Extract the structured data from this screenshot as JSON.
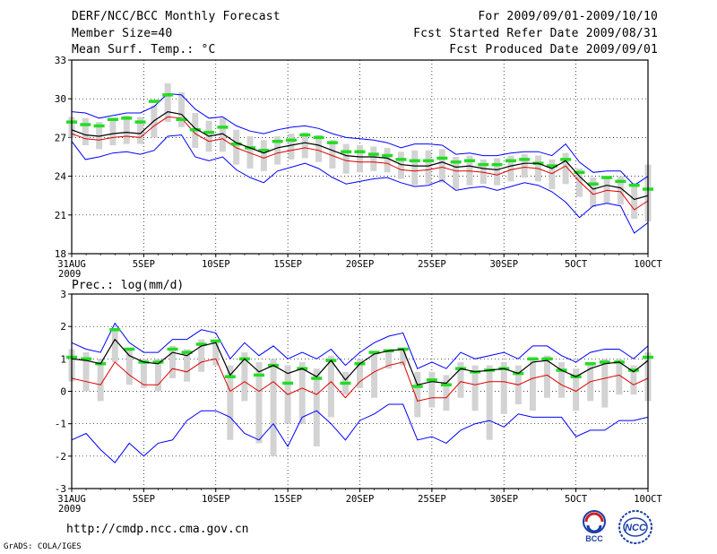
{
  "header": {
    "title": "DERF/NCC/BCC Monthly Forecast",
    "member": "Member Size=40",
    "variable": "Mean Surf. Temp.: °C",
    "period": "For 2009/09/01-2009/10/10",
    "started": "Fcst Started Refer Date 2009/08/31",
    "produced": "Fcst Produced Date 2009/09/01"
  },
  "footer": {
    "url": "http://cmdp.ncc.cma.gov.cn",
    "credit": "GrADS: COLA/IGES",
    "logo1_text": "BCC",
    "logo2_text": "NCC"
  },
  "colors": {
    "spread": "#d3d3d3",
    "blue": "#0000ff",
    "red": "#e00000",
    "green": "#22dd22",
    "mean": "#000000"
  },
  "chart_data": [
    {
      "type": "line",
      "title": "Mean Surf. Temp.: °C",
      "ylim": [
        18,
        33
      ],
      "yticks": [
        18,
        21,
        24,
        27,
        30,
        33
      ],
      "xtick_labels": [
        "31AUG",
        "5SEP",
        "10SEP",
        "15SEP",
        "20SEP",
        "25SEP",
        "30SEP",
        "5OCT",
        "10OCT"
      ],
      "xtick_days": [
        0,
        5,
        10,
        15,
        20,
        25,
        30,
        35,
        40
      ],
      "year_label": "2009",
      "grid": true,
      "series": [
        {
          "name": "ensemble mean",
          "values": [
            27.6,
            27.2,
            27.1,
            27.3,
            27.4,
            27.3,
            28.3,
            29.0,
            28.8,
            27.7,
            27.1,
            27.3,
            26.6,
            26.2,
            25.8,
            26.2,
            26.4,
            26.6,
            26.4,
            26.0,
            25.6,
            25.5,
            25.5,
            25.4,
            24.9,
            24.8,
            24.8,
            25.1,
            24.7,
            24.8,
            24.6,
            24.5,
            24.8,
            25.0,
            25.0,
            24.6,
            25.2,
            24.0,
            23.0,
            23.3,
            23.1,
            22.2,
            22.5
          ]
        },
        {
          "name": "upper bound",
          "values": [
            29.0,
            28.9,
            28.5,
            28.7,
            28.9,
            28.9,
            29.4,
            30.4,
            30.3,
            29.2,
            28.5,
            28.6,
            27.9,
            27.5,
            27.3,
            27.6,
            27.8,
            27.9,
            27.7,
            27.3,
            27.0,
            26.9,
            26.8,
            26.6,
            26.2,
            26.5,
            26.5,
            26.4,
            25.7,
            25.8,
            25.6,
            25.6,
            25.8,
            25.9,
            25.9,
            25.6,
            26.5,
            25.1,
            24.3,
            24.4,
            24.4,
            23.3,
            24.0
          ]
        },
        {
          "name": "lower bound",
          "values": [
            26.7,
            25.3,
            25.5,
            25.8,
            25.9,
            25.7,
            26.0,
            27.1,
            27.2,
            25.5,
            25.2,
            25.5,
            24.5,
            23.9,
            23.5,
            24.4,
            24.7,
            25.0,
            24.6,
            23.9,
            23.4,
            23.6,
            23.8,
            23.9,
            23.5,
            23.2,
            23.3,
            23.7,
            22.9,
            23.1,
            23.2,
            22.9,
            23.2,
            23.5,
            23.3,
            22.8,
            22.0,
            20.8,
            21.7,
            21.9,
            21.7,
            19.6,
            20.4
          ]
        },
        {
          "name": "green member",
          "values": [
            28.2,
            28.0,
            27.9,
            28.4,
            28.5,
            28.2,
            29.8,
            30.3,
            28.4,
            27.6,
            27.4,
            27.8,
            26.5,
            26.2,
            26.0,
            26.7,
            26.8,
            27.2,
            27.0,
            26.6,
            25.9,
            25.9,
            25.7,
            25.6,
            25.3,
            25.2,
            25.2,
            25.4,
            25.1,
            25.2,
            24.9,
            24.9,
            25.2,
            25.3,
            25.0,
            24.8,
            25.3,
            24.3,
            23.4,
            23.9,
            23.6,
            23.3,
            23.0
          ]
        },
        {
          "name": "red member",
          "values": [
            27.3,
            26.9,
            26.8,
            27.0,
            27.1,
            27.0,
            27.9,
            28.6,
            28.5,
            27.3,
            26.7,
            26.9,
            26.2,
            25.8,
            25.4,
            25.8,
            26.0,
            26.2,
            26.0,
            25.6,
            25.2,
            25.1,
            25.1,
            25.0,
            24.5,
            24.4,
            24.5,
            24.7,
            24.4,
            24.4,
            24.3,
            24.1,
            24.5,
            24.7,
            24.6,
            24.2,
            24.8,
            23.6,
            22.6,
            22.9,
            22.8,
            21.4,
            22.1
          ]
        },
        {
          "name": "spread bar high",
          "values": [
            28.6,
            28.5,
            28.2,
            28.5,
            28.7,
            28.6,
            29.5,
            31.2,
            30.5,
            28.9,
            28.3,
            28.5,
            27.6,
            27.1,
            26.8,
            27.1,
            27.3,
            27.4,
            27.2,
            26.8,
            26.5,
            26.4,
            26.3,
            26.2,
            25.9,
            26.0,
            26.0,
            26.1,
            25.5,
            25.6,
            25.3,
            25.4,
            25.6,
            25.7,
            25.6,
            25.3,
            25.8,
            24.6,
            23.9,
            24.0,
            24.0,
            23.5,
            24.9
          ]
        },
        {
          "name": "spread bar low",
          "values": [
            27.0,
            26.4,
            26.1,
            26.4,
            26.5,
            26.5,
            27.0,
            28.2,
            27.8,
            26.2,
            25.9,
            25.9,
            24.9,
            24.6,
            24.4,
            24.9,
            25.3,
            25.4,
            25.1,
            24.6,
            24.2,
            24.3,
            24.4,
            24.3,
            23.8,
            23.3,
            23.4,
            23.5,
            23.0,
            23.3,
            23.4,
            23.3,
            23.6,
            23.9,
            23.6,
            23.0,
            23.4,
            22.4,
            21.6,
            21.9,
            21.8,
            20.7,
            20.5
          ]
        }
      ]
    },
    {
      "type": "line",
      "title": "Prec.: log(mm/d)",
      "ylim": [
        -3,
        3
      ],
      "yticks": [
        -3,
        -2,
        -1,
        0,
        1,
        2,
        3
      ],
      "xtick_labels": [
        "31AUG",
        "5SEP",
        "10SEP",
        "15SEP",
        "20SEP",
        "25SEP",
        "30SEP",
        "5OCT",
        "10OCT"
      ],
      "xtick_days": [
        0,
        5,
        10,
        15,
        20,
        25,
        30,
        35,
        40
      ],
      "year_label": "2009",
      "grid": true,
      "series": [
        {
          "name": "ensemble mean",
          "values": [
            1.0,
            0.95,
            0.85,
            1.6,
            1.1,
            0.9,
            0.85,
            1.2,
            1.1,
            1.4,
            1.5,
            0.5,
            1.0,
            0.6,
            0.8,
            0.55,
            0.7,
            0.45,
            0.95,
            0.35,
            0.85,
            1.15,
            1.25,
            1.3,
            0.2,
            0.3,
            0.25,
            0.7,
            0.6,
            0.65,
            0.7,
            0.55,
            0.9,
            0.95,
            0.65,
            0.45,
            0.7,
            0.85,
            0.9,
            0.6,
            0.95
          ]
        },
        {
          "name": "upper bound",
          "values": [
            1.5,
            1.3,
            1.2,
            2.1,
            1.5,
            1.2,
            1.2,
            1.6,
            1.6,
            1.9,
            1.8,
            1.0,
            1.5,
            1.1,
            1.4,
            1.0,
            1.2,
            1.0,
            1.3,
            0.8,
            1.2,
            1.5,
            1.7,
            1.8,
            0.7,
            0.9,
            0.7,
            1.2,
            1.0,
            1.1,
            1.2,
            1.0,
            1.4,
            1.4,
            1.1,
            0.9,
            1.2,
            1.3,
            1.3,
            1.0,
            1.4
          ]
        },
        {
          "name": "lower bound",
          "values": [
            -1.5,
            -1.3,
            -1.8,
            -2.2,
            -1.6,
            -2.0,
            -1.6,
            -1.5,
            -0.9,
            -0.6,
            -0.6,
            -0.8,
            -1.3,
            -1.5,
            -1.0,
            -1.7,
            -0.8,
            -0.6,
            -1.0,
            -1.5,
            -0.9,
            -0.7,
            -0.4,
            -0.4,
            -1.5,
            -1.4,
            -1.6,
            -1.2,
            -1.0,
            -0.9,
            -1.1,
            -0.7,
            -0.8,
            -0.8,
            -0.8,
            -1.4,
            -1.2,
            -1.2,
            -0.9,
            -0.9,
            -0.8
          ]
        },
        {
          "name": "green member",
          "values": [
            1.05,
            1.0,
            0.85,
            1.9,
            1.3,
            0.9,
            0.9,
            1.3,
            1.2,
            1.45,
            1.55,
            0.45,
            1.0,
            0.5,
            0.8,
            0.25,
            0.7,
            0.4,
            0.95,
            0.25,
            0.85,
            1.2,
            1.25,
            1.3,
            0.15,
            0.35,
            0.2,
            0.7,
            0.6,
            0.65,
            0.7,
            0.55,
            1.0,
            1.0,
            0.65,
            0.45,
            0.85,
            0.9,
            0.9,
            0.65,
            1.05
          ]
        },
        {
          "name": "red member",
          "values": [
            0.4,
            0.3,
            0.2,
            0.9,
            0.5,
            0.2,
            0.2,
            0.7,
            0.6,
            0.9,
            1.0,
            0.0,
            0.3,
            0.0,
            0.3,
            -0.1,
            0.1,
            -0.1,
            0.3,
            -0.2,
            0.3,
            0.6,
            0.8,
            0.9,
            -0.3,
            -0.2,
            -0.2,
            0.3,
            0.2,
            0.3,
            0.3,
            0.2,
            0.4,
            0.5,
            0.2,
            0.0,
            0.3,
            0.4,
            0.5,
            0.2,
            0.4
          ]
        },
        {
          "name": "spread bar high",
          "values": [
            1.3,
            1.2,
            1.0,
            1.9,
            1.3,
            1.0,
            1.0,
            1.4,
            1.3,
            1.6,
            1.6,
            0.8,
            1.2,
            0.9,
            1.0,
            0.8,
            0.9,
            0.7,
            1.1,
            0.6,
            1.0,
            1.2,
            1.3,
            1.3,
            0.6,
            0.6,
            0.5,
            0.9,
            0.8,
            0.8,
            0.9,
            0.8,
            1.0,
            1.1,
            0.9,
            0.7,
            0.9,
            1.0,
            1.0,
            0.8,
            1.2
          ]
        },
        {
          "name": "spread bar low",
          "values": [
            0.3,
            0.0,
            -0.3,
            0.9,
            0.2,
            0.1,
            0.0,
            0.4,
            0.3,
            0.6,
            0.8,
            -1.5,
            -0.3,
            -1.6,
            -2.0,
            -1.0,
            -1.0,
            -1.7,
            -0.8,
            -0.1,
            0.1,
            -0.2,
            0.7,
            0.8,
            -0.8,
            -0.5,
            -0.6,
            -0.2,
            -0.6,
            -1.5,
            -0.7,
            -0.4,
            -0.6,
            -0.2,
            -0.2,
            -0.6,
            -0.3,
            -0.5,
            -0.1,
            -0.1,
            -0.3
          ]
        }
      ]
    }
  ]
}
